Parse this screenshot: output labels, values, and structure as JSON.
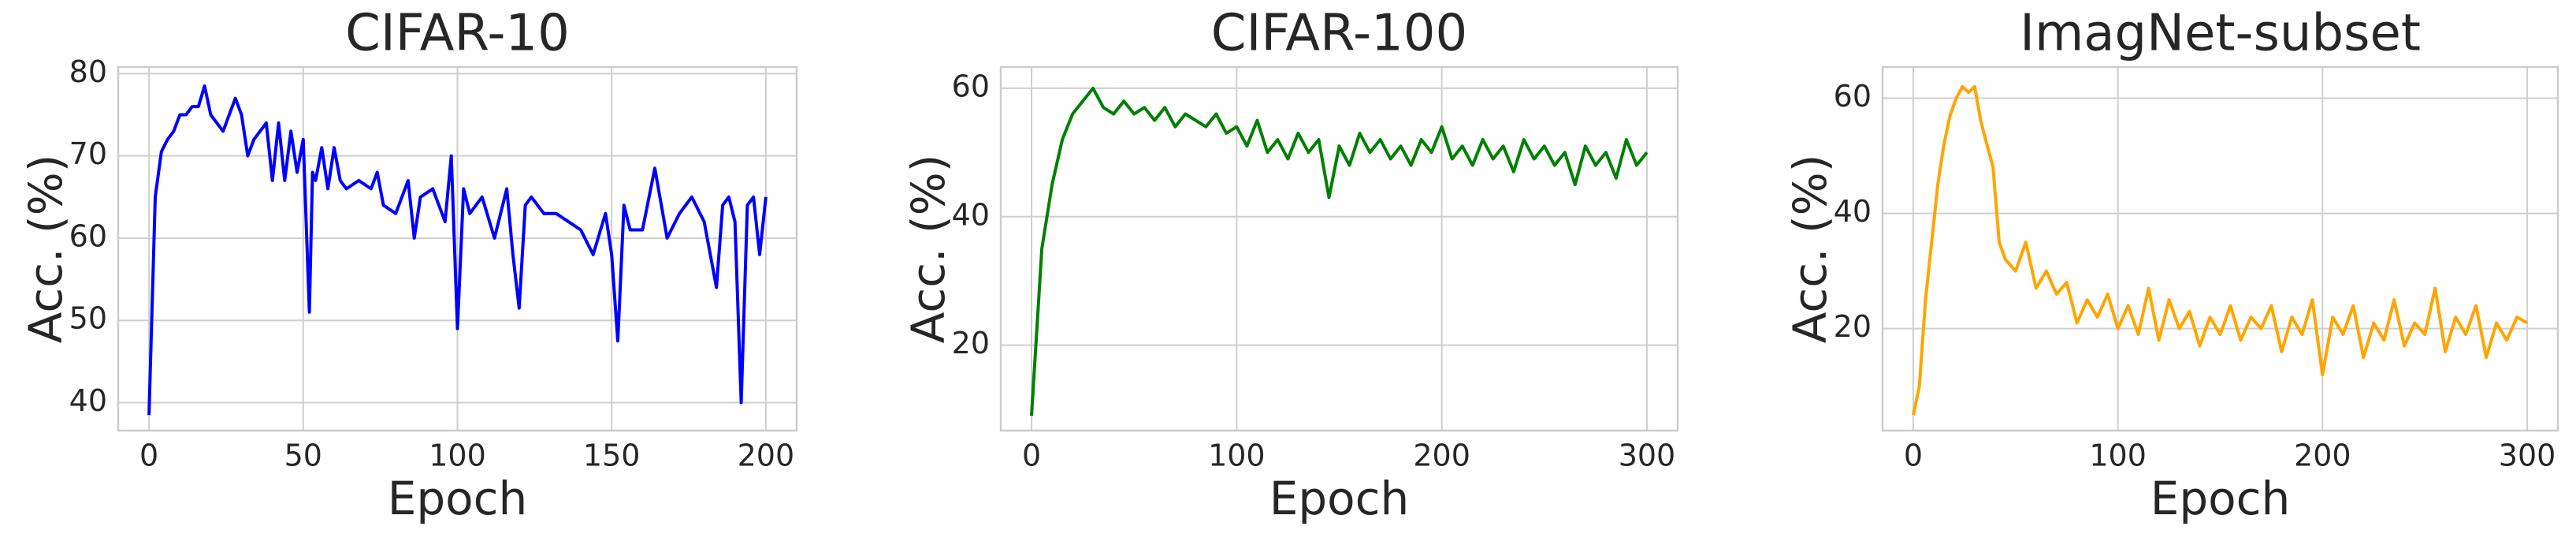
{
  "chart_data": [
    {
      "type": "line",
      "title": "CIFAR-10",
      "xlabel": "Epoch",
      "ylabel": "Acc. (%)",
      "color": "blue",
      "xlim": [
        -10,
        210
      ],
      "ylim": [
        36.6,
        80.8
      ],
      "xticks": [
        0,
        50,
        100,
        150,
        200
      ],
      "yticks": [
        40,
        50,
        60,
        70,
        80
      ],
      "grid": true,
      "x": [
        0,
        2,
        4,
        6,
        8,
        10,
        12,
        14,
        16,
        18,
        20,
        24,
        28,
        30,
        32,
        34,
        36,
        38,
        40,
        42,
        44,
        46,
        48,
        50,
        52,
        53,
        54,
        56,
        58,
        60,
        62,
        64,
        68,
        72,
        74,
        76,
        80,
        84,
        86,
        88,
        92,
        96,
        98,
        100,
        102,
        104,
        108,
        112,
        116,
        118,
        120,
        122,
        124,
        128,
        132,
        136,
        140,
        144,
        148,
        150,
        152,
        154,
        156,
        160,
        164,
        168,
        172,
        176,
        180,
        184,
        186,
        188,
        190,
        192,
        194,
        196,
        198,
        200
      ],
      "values": [
        38.5,
        65,
        70.5,
        72,
        73,
        75,
        75,
        76,
        76,
        78.5,
        75,
        73,
        77,
        75,
        70,
        72,
        73,
        74,
        67,
        74,
        67,
        73,
        68,
        72,
        51,
        68,
        67,
        71,
        66,
        71,
        67,
        66,
        67,
        66,
        68,
        64,
        63,
        67,
        60,
        65,
        66,
        62,
        70,
        49,
        66,
        63,
        65,
        60,
        66,
        58,
        51.5,
        64,
        65,
        63,
        63,
        62,
        61,
        58,
        63,
        58,
        47.5,
        64,
        61,
        61,
        68.5,
        60,
        63,
        65,
        62,
        54,
        64,
        65,
        62,
        40,
        64,
        65,
        58,
        65
      ]
    },
    {
      "type": "line",
      "title": "CIFAR-100",
      "xlabel": "Epoch",
      "ylabel": "Acc. (%)",
      "color": "green",
      "xlim": [
        -15,
        315
      ],
      "ylim": [
        6.7,
        63.3
      ],
      "xticks": [
        0,
        100,
        200,
        300
      ],
      "yticks": [
        20,
        40,
        60
      ],
      "grid": true,
      "x": [
        0,
        5,
        10,
        15,
        20,
        25,
        30,
        35,
        40,
        45,
        50,
        55,
        60,
        65,
        70,
        75,
        80,
        85,
        90,
        95,
        100,
        105,
        110,
        115,
        120,
        125,
        130,
        135,
        140,
        145,
        150,
        155,
        160,
        165,
        170,
        175,
        180,
        185,
        190,
        195,
        200,
        205,
        210,
        215,
        220,
        225,
        230,
        235,
        240,
        245,
        250,
        255,
        260,
        265,
        270,
        275,
        280,
        285,
        290,
        295,
        300
      ],
      "values": [
        9,
        35,
        45,
        52,
        56,
        58,
        60,
        57,
        56,
        58,
        56,
        57,
        55,
        57,
        54,
        56,
        55,
        54,
        56,
        53,
        54,
        51,
        55,
        50,
        52,
        49,
        53,
        50,
        52,
        43,
        51,
        48,
        53,
        50,
        52,
        49,
        51,
        48,
        52,
        50,
        54,
        49,
        51,
        48,
        52,
        49,
        51,
        47,
        52,
        49,
        51,
        48,
        50,
        45,
        51,
        48,
        50,
        46,
        52,
        48,
        50
      ]
    },
    {
      "type": "line",
      "title": "ImagNet-subset",
      "xlabel": "Epoch",
      "ylabel": "Acc. (%)",
      "color": "orange",
      "xlim": [
        -15,
        315
      ],
      "ylim": [
        2.3,
        65.4
      ],
      "xticks": [
        0,
        100,
        200,
        300
      ],
      "yticks": [
        20,
        40,
        60
      ],
      "grid": true,
      "x": [
        0,
        3,
        6,
        9,
        12,
        15,
        18,
        21,
        24,
        27,
        30,
        33,
        36,
        39,
        42,
        45,
        50,
        55,
        60,
        65,
        70,
        75,
        80,
        85,
        90,
        95,
        100,
        105,
        110,
        115,
        120,
        125,
        130,
        135,
        140,
        145,
        150,
        155,
        160,
        165,
        170,
        175,
        180,
        185,
        190,
        195,
        200,
        205,
        210,
        215,
        220,
        225,
        230,
        235,
        240,
        245,
        250,
        255,
        260,
        265,
        270,
        275,
        280,
        285,
        290,
        295,
        300
      ],
      "values": [
        5,
        10,
        25,
        35,
        45,
        52,
        57,
        60,
        62,
        61,
        62,
        56,
        52,
        48,
        35,
        32,
        30,
        35,
        27,
        30,
        26,
        28,
        21,
        25,
        22,
        26,
        20,
        24,
        19,
        27,
        18,
        25,
        20,
        23,
        17,
        22,
        19,
        24,
        18,
        22,
        20,
        24,
        16,
        22,
        19,
        25,
        12,
        22,
        19,
        24,
        15,
        21,
        18,
        25,
        17,
        21,
        19,
        27,
        16,
        22,
        19,
        24,
        15,
        21,
        18,
        22,
        21
      ]
    }
  ]
}
